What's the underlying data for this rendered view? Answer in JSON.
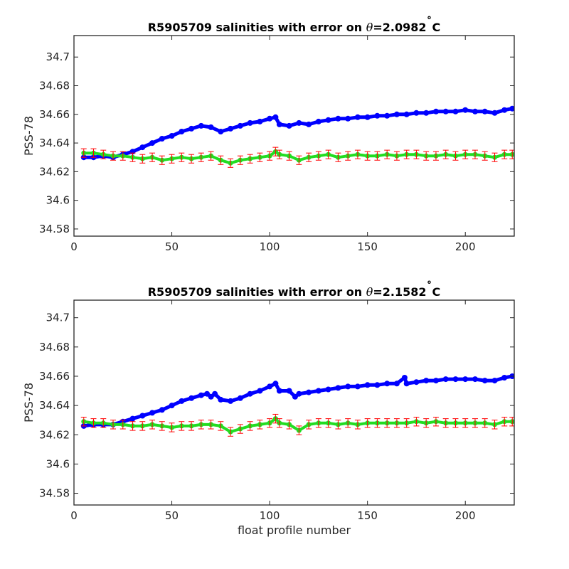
{
  "chart_data": [
    {
      "type": "scatter",
      "title_prefix": "R5905709 salinities with error on ",
      "title_theta": "θ",
      "title_suffix": "=2.0982",
      "title_degree": "˚",
      "title_unit": "C",
      "xlabel": "",
      "ylabel": "PSS-78",
      "xlim": [
        0,
        225
      ],
      "ylim": [
        34.575,
        34.715
      ],
      "xticks": [
        0,
        50,
        100,
        150,
        200
      ],
      "xtick_labels": [
        "0",
        "50",
        "100",
        "150",
        "200"
      ],
      "yticks": [
        34.58,
        34.6,
        34.62,
        34.64,
        34.66,
        34.68,
        34.7
      ],
      "ytick_labels": [
        "34.58",
        "34.6",
        "34.62",
        "34.64",
        "34.66",
        "34.68",
        "34.7"
      ],
      "grid": false,
      "colors": {
        "uncalibrated": "#0000ff",
        "calibrated": "#22dd22",
        "error_bars": "#ff0000",
        "axes": "#262626"
      },
      "series": [
        {
          "role": "uncalibrated",
          "x": [
            5,
            10,
            15,
            20,
            25,
            30,
            35,
            40,
            45,
            50,
            55,
            60,
            65,
            70,
            75,
            80,
            85,
            90,
            95,
            100,
            103,
            105,
            110,
            115,
            120,
            125,
            130,
            135,
            140,
            145,
            150,
            155,
            160,
            165,
            170,
            175,
            180,
            185,
            190,
            195,
            200,
            205,
            210,
            215,
            220,
            224
          ],
          "y": [
            34.63,
            34.63,
            34.631,
            34.63,
            34.632,
            34.634,
            34.637,
            34.64,
            34.643,
            34.645,
            34.648,
            34.65,
            34.652,
            34.651,
            34.648,
            34.65,
            34.652,
            34.654,
            34.655,
            34.657,
            34.658,
            34.653,
            34.652,
            34.654,
            34.653,
            34.655,
            34.656,
            34.657,
            34.657,
            34.658,
            34.658,
            34.659,
            34.659,
            34.66,
            34.66,
            34.661,
            34.661,
            34.662,
            34.662,
            34.662,
            34.663,
            34.662,
            34.662,
            34.661,
            34.663,
            34.664
          ]
        },
        {
          "role": "calibrated",
          "x": [
            5,
            10,
            15,
            20,
            25,
            30,
            35,
            40,
            45,
            50,
            55,
            60,
            65,
            70,
            75,
            80,
            85,
            90,
            95,
            100,
            103,
            105,
            110,
            115,
            120,
            125,
            130,
            135,
            140,
            145,
            150,
            155,
            160,
            165,
            170,
            175,
            180,
            185,
            190,
            195,
            200,
            205,
            210,
            215,
            220,
            224
          ],
          "y": [
            34.633,
            34.633,
            34.632,
            34.631,
            34.631,
            34.63,
            34.629,
            34.63,
            34.628,
            34.629,
            34.63,
            34.629,
            34.63,
            34.631,
            34.628,
            34.626,
            34.628,
            34.629,
            34.63,
            34.631,
            34.634,
            34.632,
            34.631,
            34.628,
            34.63,
            34.631,
            34.632,
            34.63,
            34.631,
            34.632,
            34.631,
            34.631,
            34.632,
            34.631,
            34.632,
            34.632,
            34.631,
            34.631,
            34.632,
            34.631,
            34.632,
            34.632,
            34.631,
            34.63,
            34.632,
            34.632
          ]
        }
      ],
      "error_half_width": 0.003
    },
    {
      "type": "scatter",
      "title_prefix": "R5905709 salinities with error on ",
      "title_theta": "θ",
      "title_suffix": "=2.1582",
      "title_degree": "˚",
      "title_unit": "C",
      "xlabel": "float profile number",
      "ylabel": "PSS-78",
      "xlim": [
        0,
        225
      ],
      "ylim": [
        34.572,
        34.712
      ],
      "xticks": [
        0,
        50,
        100,
        150,
        200
      ],
      "xtick_labels": [
        "0",
        "50",
        "100",
        "150",
        "200"
      ],
      "yticks": [
        34.58,
        34.6,
        34.62,
        34.64,
        34.66,
        34.68,
        34.7
      ],
      "ytick_labels": [
        "34.58",
        "34.6",
        "34.62",
        "34.64",
        "34.66",
        "34.68",
        "34.7"
      ],
      "grid": false,
      "colors": {
        "uncalibrated": "#0000ff",
        "calibrated": "#22dd22",
        "error_bars": "#ff0000",
        "axes": "#262626"
      },
      "series": [
        {
          "role": "uncalibrated",
          "x": [
            5,
            10,
            15,
            20,
            25,
            30,
            35,
            40,
            45,
            50,
            55,
            60,
            65,
            68,
            70,
            72,
            75,
            80,
            85,
            90,
            95,
            100,
            103,
            105,
            110,
            113,
            115,
            120,
            125,
            130,
            135,
            140,
            145,
            150,
            155,
            160,
            165,
            169,
            170,
            175,
            180,
            185,
            190,
            195,
            200,
            205,
            210,
            215,
            220,
            224
          ],
          "y": [
            34.626,
            34.627,
            34.627,
            34.627,
            34.629,
            34.631,
            34.633,
            34.635,
            34.637,
            34.64,
            34.643,
            34.645,
            34.647,
            34.648,
            34.646,
            34.648,
            34.644,
            34.643,
            34.645,
            34.648,
            34.65,
            34.653,
            34.655,
            34.65,
            34.65,
            34.646,
            34.648,
            34.649,
            34.65,
            34.651,
            34.652,
            34.653,
            34.653,
            34.654,
            34.654,
            34.655,
            34.655,
            34.659,
            34.655,
            34.656,
            34.657,
            34.657,
            34.658,
            34.658,
            34.658,
            34.658,
            34.657,
            34.657,
            34.659,
            34.66
          ]
        },
        {
          "role": "calibrated",
          "x": [
            5,
            10,
            15,
            20,
            25,
            30,
            35,
            40,
            45,
            50,
            55,
            60,
            65,
            70,
            75,
            80,
            85,
            90,
            95,
            100,
            103,
            105,
            110,
            115,
            120,
            125,
            130,
            135,
            140,
            145,
            150,
            155,
            160,
            165,
            170,
            175,
            180,
            185,
            190,
            195,
            200,
            205,
            210,
            215,
            220,
            224
          ],
          "y": [
            34.629,
            34.628,
            34.628,
            34.627,
            34.627,
            34.626,
            34.626,
            34.627,
            34.626,
            34.625,
            34.626,
            34.626,
            34.627,
            34.627,
            34.626,
            34.622,
            34.624,
            34.626,
            34.627,
            34.628,
            34.631,
            34.628,
            34.627,
            34.623,
            34.627,
            34.628,
            34.628,
            34.627,
            34.628,
            34.627,
            34.628,
            34.628,
            34.628,
            34.628,
            34.628,
            34.629,
            34.628,
            34.629,
            34.628,
            34.628,
            34.628,
            34.628,
            34.628,
            34.627,
            34.629,
            34.629
          ]
        }
      ],
      "error_half_width": 0.003
    }
  ]
}
